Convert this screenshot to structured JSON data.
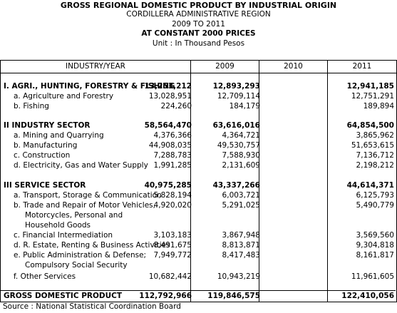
{
  "header": {
    "title": "GROSS REGIONAL DOMESTIC PRODUCT BY INDUSTRIAL ORIGIN",
    "region": "CORDILLERA ADMINISTRATIVE REGION",
    "period": "2009 TO 2011",
    "prices": "AT CONSTANT 2000 PRICES",
    "unit": "Unit : In Thousand Pesos"
  },
  "columns": {
    "industry": "INDUSTRY/YEAR",
    "y1": "2009",
    "y2": "2010",
    "y3": "2011"
  },
  "rows": [
    {
      "label": "I. AGRI., HUNTING, FORESTRY & FISHING",
      "v1": "13,253,212",
      "v2": "12,893,293",
      "v3": "12,941,185"
    },
    {
      "label": "a. Agriculture and Forestry",
      "v1": "13,028,951",
      "v2": "12,709,114",
      "v3": "12,751,291"
    },
    {
      "label": "b. Fishing",
      "v1": "224,260",
      "v2": "184,179",
      "v3": "189,894"
    },
    {
      "label": "II  INDUSTRY SECTOR",
      "v1": "58,564,470",
      "v2": "63,616,016",
      "v3": "64,854,500"
    },
    {
      "label": "a. Mining and Quarrying",
      "v1": "4,376,366",
      "v2": "4,364,721",
      "v3": "3,865,962"
    },
    {
      "label": "b. Manufacturing",
      "v1": "44,908,035",
      "v2": "49,530,757",
      "v3": "51,653,615"
    },
    {
      "label": "c. Construction",
      "v1": "7,288,783",
      "v2": "7,588,930",
      "v3": "7,136,712"
    },
    {
      "label": "d. Electricity, Gas and Water Supply",
      "v1": "1,991,285",
      "v2": "2,131,609",
      "v3": "2,198,212"
    },
    {
      "label": "III  SERVICE SECTOR",
      "v1": "40,975,285",
      "v2": "43,337,266",
      "v3": "44,614,371"
    },
    {
      "label": "a. Transport, Storage & Communication",
      "v1": "5,828,194",
      "v2": "6,003,721",
      "v3": "6,125,793"
    },
    {
      "label": "b. Trade and Repair of Motor Vehicles,",
      "v1": "4,920,020",
      "v2": "5,291,025",
      "v3": "5,490,779"
    },
    {
      "label": "Motorcycles, Personal and"
    },
    {
      "label": "Household Goods"
    },
    {
      "label": "c. Financial Intermediation",
      "v1": "3,103,183",
      "v2": "3,867,948",
      "v3": "3,569,560"
    },
    {
      "label": "d. R. Estate, Renting & Business Activities",
      "v1": "8,491,675",
      "v2": "8,813,871",
      "v3": "9,304,818"
    },
    {
      "label": "e. Public Administration & Defense;",
      "v1": "7,949,772",
      "v2": "8,417,483",
      "v3": "8,161,817"
    },
    {
      "label": "Compulsory Social Security"
    },
    {
      "label": "f. Other Services",
      "v1": "10,682,442",
      "v2": "10,943,219",
      "v3": "11,961,605"
    }
  ],
  "total": {
    "label": "GROSS DOMESTIC PRODUCT",
    "v1": "112,792,966",
    "v2": "119,846,575",
    "v3": "122,410,056"
  },
  "source": "Source : National Statistical Coordination Board"
}
